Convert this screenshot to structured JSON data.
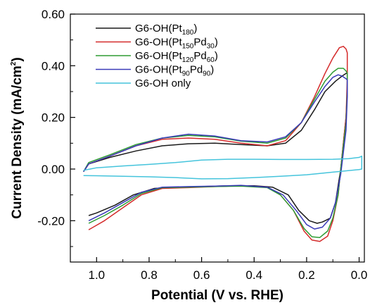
{
  "chart_data": {
    "type": "line",
    "title": "",
    "xlabel": "Potential (V vs. RHE)",
    "ylabel_main": "Current Density (mA/cm",
    "ylabel_sup": "2",
    "ylabel_end": ")",
    "xlim": [
      1.1,
      -0.02
    ],
    "ylim": [
      -0.36,
      0.6
    ],
    "x_reversed": true,
    "xticks": [
      1.0,
      0.8,
      0.6,
      0.4,
      0.2,
      0.0
    ],
    "xtick_labels": [
      "1.0",
      "0.8",
      "0.6",
      "0.4",
      "0.2",
      "0.0"
    ],
    "yticks": [
      0.6,
      0.4,
      0.2,
      0.0,
      -0.2
    ],
    "ytick_labels": [
      "0.60",
      "0.40",
      "0.20",
      "0.00",
      "-0.20"
    ],
    "grid": false,
    "legend_position": "top-left",
    "series": [
      {
        "name_base": "G6-OH(Pt",
        "name_sub": "180",
        "name_end": ")",
        "color": "#1a1a1a",
        "points": [
          [
            1.05,
            -0.01
          ],
          [
            1.03,
            0.02
          ],
          [
            0.95,
            0.045
          ],
          [
            0.85,
            0.07
          ],
          [
            0.75,
            0.09
          ],
          [
            0.65,
            0.098
          ],
          [
            0.55,
            0.1
          ],
          [
            0.45,
            0.095
          ],
          [
            0.35,
            0.09
          ],
          [
            0.28,
            0.1
          ],
          [
            0.22,
            0.15
          ],
          [
            0.17,
            0.23
          ],
          [
            0.13,
            0.3
          ],
          [
            0.09,
            0.34
          ],
          [
            0.065,
            0.36
          ],
          [
            0.05,
            0.37
          ],
          [
            0.045,
            0.37
          ],
          [
            0.045,
            0.3
          ],
          [
            0.05,
            0.2
          ],
          [
            0.07,
            0.0
          ],
          [
            0.09,
            -0.13
          ],
          [
            0.11,
            -0.19
          ],
          [
            0.14,
            -0.205
          ],
          [
            0.16,
            -0.21
          ],
          [
            0.19,
            -0.2
          ],
          [
            0.23,
            -0.16
          ],
          [
            0.27,
            -0.1
          ],
          [
            0.33,
            -0.07
          ],
          [
            0.4,
            -0.065
          ],
          [
            0.5,
            -0.065
          ],
          [
            0.6,
            -0.068
          ],
          [
            0.7,
            -0.07
          ],
          [
            0.78,
            -0.075
          ],
          [
            0.86,
            -0.1
          ],
          [
            0.93,
            -0.14
          ],
          [
            1.0,
            -0.17
          ],
          [
            1.03,
            -0.18
          ]
        ]
      },
      {
        "name_base": "G6-OH(Pt",
        "name_sub": "150",
        "name_end": "Pd",
        "name_sub2": "30",
        "name_end2": ")",
        "color": "#d42a2a",
        "points": [
          [
            1.05,
            -0.01
          ],
          [
            1.03,
            0.02
          ],
          [
            0.95,
            0.05
          ],
          [
            0.85,
            0.09
          ],
          [
            0.75,
            0.115
          ],
          [
            0.65,
            0.12
          ],
          [
            0.55,
            0.115
          ],
          [
            0.45,
            0.1
          ],
          [
            0.35,
            0.09
          ],
          [
            0.28,
            0.11
          ],
          [
            0.22,
            0.18
          ],
          [
            0.17,
            0.28
          ],
          [
            0.13,
            0.37
          ],
          [
            0.1,
            0.43
          ],
          [
            0.075,
            0.47
          ],
          [
            0.06,
            0.475
          ],
          [
            0.05,
            0.465
          ],
          [
            0.045,
            0.45
          ],
          [
            0.045,
            0.35
          ],
          [
            0.05,
            0.2
          ],
          [
            0.07,
            0.0
          ],
          [
            0.08,
            -0.1
          ],
          [
            0.1,
            -0.2
          ],
          [
            0.12,
            -0.26
          ],
          [
            0.15,
            -0.28
          ],
          [
            0.18,
            -0.275
          ],
          [
            0.21,
            -0.24
          ],
          [
            0.25,
            -0.16
          ],
          [
            0.3,
            -0.1
          ],
          [
            0.35,
            -0.07
          ],
          [
            0.45,
            -0.065
          ],
          [
            0.55,
            -0.068
          ],
          [
            0.65,
            -0.072
          ],
          [
            0.75,
            -0.075
          ],
          [
            0.83,
            -0.1
          ],
          [
            0.9,
            -0.15
          ],
          [
            0.97,
            -0.2
          ],
          [
            1.03,
            -0.235
          ]
        ]
      },
      {
        "name_base": "G6-OH(Pt",
        "name_sub": "120",
        "name_end": "Pd",
        "name_sub2": "60",
        "name_end2": ")",
        "color": "#2e9c34",
        "points": [
          [
            1.05,
            -0.01
          ],
          [
            1.03,
            0.025
          ],
          [
            0.95,
            0.055
          ],
          [
            0.85,
            0.095
          ],
          [
            0.75,
            0.12
          ],
          [
            0.65,
            0.13
          ],
          [
            0.55,
            0.125
          ],
          [
            0.45,
            0.108
          ],
          [
            0.35,
            0.1
          ],
          [
            0.28,
            0.12
          ],
          [
            0.22,
            0.18
          ],
          [
            0.17,
            0.27
          ],
          [
            0.13,
            0.34
          ],
          [
            0.1,
            0.375
          ],
          [
            0.08,
            0.39
          ],
          [
            0.06,
            0.39
          ],
          [
            0.05,
            0.38
          ],
          [
            0.045,
            0.37
          ],
          [
            0.045,
            0.3
          ],
          [
            0.05,
            0.18
          ],
          [
            0.07,
            0.0
          ],
          [
            0.08,
            -0.1
          ],
          [
            0.1,
            -0.19
          ],
          [
            0.12,
            -0.24
          ],
          [
            0.15,
            -0.265
          ],
          [
            0.18,
            -0.262
          ],
          [
            0.21,
            -0.23
          ],
          [
            0.25,
            -0.16
          ],
          [
            0.3,
            -0.1
          ],
          [
            0.35,
            -0.072
          ],
          [
            0.45,
            -0.066
          ],
          [
            0.55,
            -0.068
          ],
          [
            0.65,
            -0.07
          ],
          [
            0.75,
            -0.072
          ],
          [
            0.83,
            -0.095
          ],
          [
            0.9,
            -0.14
          ],
          [
            0.97,
            -0.18
          ],
          [
            1.03,
            -0.21
          ]
        ]
      },
      {
        "name_base": "G6-OH(Pt",
        "name_sub": "90",
        "name_end": "Pd",
        "name_sub2": "90",
        "name_end2": ")",
        "color": "#3a3ab8",
        "points": [
          [
            1.05,
            -0.01
          ],
          [
            1.03,
            0.02
          ],
          [
            0.95,
            0.05
          ],
          [
            0.85,
            0.09
          ],
          [
            0.75,
            0.12
          ],
          [
            0.65,
            0.135
          ],
          [
            0.55,
            0.128
          ],
          [
            0.45,
            0.11
          ],
          [
            0.35,
            0.105
          ],
          [
            0.28,
            0.125
          ],
          [
            0.22,
            0.18
          ],
          [
            0.17,
            0.26
          ],
          [
            0.13,
            0.32
          ],
          [
            0.1,
            0.355
          ],
          [
            0.08,
            0.365
          ],
          [
            0.065,
            0.36
          ],
          [
            0.05,
            0.35
          ],
          [
            0.045,
            0.345
          ],
          [
            0.045,
            0.28
          ],
          [
            0.05,
            0.15
          ],
          [
            0.07,
            -0.02
          ],
          [
            0.09,
            -0.13
          ],
          [
            0.11,
            -0.19
          ],
          [
            0.14,
            -0.225
          ],
          [
            0.17,
            -0.232
          ],
          [
            0.2,
            -0.215
          ],
          [
            0.24,
            -0.16
          ],
          [
            0.29,
            -0.1
          ],
          [
            0.35,
            -0.07
          ],
          [
            0.45,
            -0.063
          ],
          [
            0.55,
            -0.066
          ],
          [
            0.65,
            -0.068
          ],
          [
            0.75,
            -0.07
          ],
          [
            0.83,
            -0.09
          ],
          [
            0.9,
            -0.13
          ],
          [
            0.97,
            -0.17
          ],
          [
            1.03,
            -0.2
          ]
        ]
      },
      {
        "name_base": "G6-OH only",
        "color": "#45c4dc",
        "points": [
          [
            1.05,
            -0.005
          ],
          [
            1.0,
            0.005
          ],
          [
            0.9,
            0.012
          ],
          [
            0.8,
            0.018
          ],
          [
            0.7,
            0.025
          ],
          [
            0.6,
            0.035
          ],
          [
            0.5,
            0.038
          ],
          [
            0.4,
            0.038
          ],
          [
            0.3,
            0.037
          ],
          [
            0.2,
            0.037
          ],
          [
            0.1,
            0.038
          ],
          [
            0.04,
            0.04
          ],
          [
            0.0,
            0.045
          ],
          [
            -0.01,
            0.05
          ],
          [
            -0.01,
            0.0
          ],
          [
            0.0,
            -0.002
          ],
          [
            0.1,
            -0.012
          ],
          [
            0.2,
            -0.022
          ],
          [
            0.3,
            -0.028
          ],
          [
            0.4,
            -0.033
          ],
          [
            0.5,
            -0.037
          ],
          [
            0.6,
            -0.038
          ],
          [
            0.7,
            -0.033
          ],
          [
            0.8,
            -0.03
          ],
          [
            0.9,
            -0.028
          ],
          [
            1.0,
            -0.026
          ],
          [
            1.05,
            -0.025
          ]
        ]
      }
    ]
  }
}
